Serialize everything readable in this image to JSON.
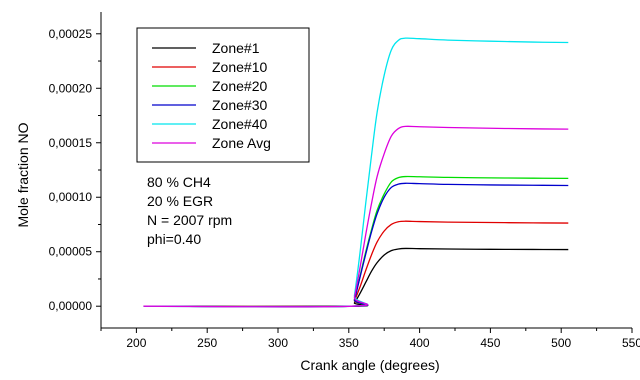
{
  "chart_data": {
    "type": "line",
    "title": "",
    "xlabel": "Crank angle (degrees)",
    "ylabel": "Mole fraction NO",
    "xlim": [
      175,
      550
    ],
    "ylim": [
      -2e-05,
      0.00027
    ],
    "x_ticks": [
      "200",
      "250",
      "300",
      "350",
      "400",
      "450",
      "500",
      "550"
    ],
    "y_ticks": [
      "0,00000",
      "0,00005",
      "0,00010",
      "0,00015",
      "0,00020",
      "0,00025"
    ],
    "x_tick_values": [
      200,
      250,
      300,
      350,
      400,
      450,
      500,
      550
    ],
    "y_tick_values": [
      0,
      5e-05,
      0.0001,
      0.00015,
      0.0002,
      0.00025
    ],
    "grid": false,
    "legend_position": "top-left",
    "annotations": [
      "80 % CH4",
      "20 % EGR",
      "N = 2007 rpm",
      "phi=0.40"
    ],
    "series": [
      {
        "name": "Zone#1",
        "color": "#000000",
        "x": [
          205,
          352,
          354,
          358,
          362,
          366,
          370,
          375,
          380,
          385,
          390,
          400,
          420,
          450,
          480,
          505
        ],
        "y": [
          0,
          0,
          3e-06,
          1.2e-05,
          2.2e-05,
          3.2e-05,
          4e-05,
          4.7e-05,
          5.1e-05,
          5.25e-05,
          5.3e-05,
          5.28e-05,
          5.25e-05,
          5.22e-05,
          5.21e-05,
          5.2e-05
        ]
      },
      {
        "name": "Zone#10",
        "color": "#e00000",
        "x": [
          205,
          352,
          354,
          358,
          362,
          366,
          370,
          375,
          380,
          385,
          390,
          400,
          420,
          450,
          480,
          505
        ],
        "y": [
          0,
          0,
          5e-06,
          1.8e-05,
          3.3e-05,
          4.7e-05,
          5.9e-05,
          6.9e-05,
          7.5e-05,
          7.75e-05,
          7.8e-05,
          7.77e-05,
          7.72e-05,
          7.68e-05,
          7.65e-05,
          7.63e-05
        ]
      },
      {
        "name": "Zone#20",
        "color": "#00dd00",
        "x": [
          205,
          352,
          354,
          358,
          362,
          366,
          370,
          375,
          380,
          385,
          390,
          400,
          420,
          450,
          480,
          505
        ],
        "y": [
          0,
          0,
          6e-06,
          2.8e-05,
          5e-05,
          7e-05,
          8.8e-05,
          0.000103,
          0.000114,
          0.000118,
          0.000119,
          0.0001188,
          0.0001182,
          0.0001178,
          0.0001175,
          0.0001173
        ]
      },
      {
        "name": "Zone#30",
        "color": "#0000cc",
        "x": [
          205,
          352,
          354,
          358,
          362,
          366,
          370,
          375,
          380,
          385,
          390,
          400,
          420,
          450,
          480,
          505
        ],
        "y": [
          0,
          0,
          6e-06,
          2.7e-05,
          4.8e-05,
          6.8e-05,
          8.5e-05,
          0.0001,
          0.000109,
          0.000112,
          0.0001128,
          0.0001125,
          0.0001118,
          0.0001113,
          0.000111,
          0.0001108
        ]
      },
      {
        "name": "Zone#40",
        "color": "#00e5ee",
        "x": [
          205,
          352,
          354,
          358,
          362,
          366,
          370,
          375,
          380,
          385,
          390,
          400,
          420,
          450,
          480,
          505
        ],
        "y": [
          0,
          0,
          1e-05,
          5e-05,
          9.5e-05,
          0.000138,
          0.000178,
          0.000212,
          0.000235,
          0.000244,
          0.000246,
          0.0002455,
          0.0002442,
          0.0002432,
          0.0002424,
          0.000242
        ]
      },
      {
        "name": "Zone Avg",
        "color": "#dd00dd",
        "x": [
          205,
          352,
          354,
          358,
          362,
          366,
          370,
          375,
          380,
          385,
          390,
          400,
          420,
          450,
          480,
          505
        ],
        "y": [
          0,
          0,
          8e-06,
          3.6e-05,
          6.6e-05,
          9.4e-05,
          0.000119,
          0.00014,
          0.000156,
          0.000163,
          0.000165,
          0.0001647,
          0.000164,
          0.0001633,
          0.0001628,
          0.0001625
        ]
      }
    ]
  }
}
